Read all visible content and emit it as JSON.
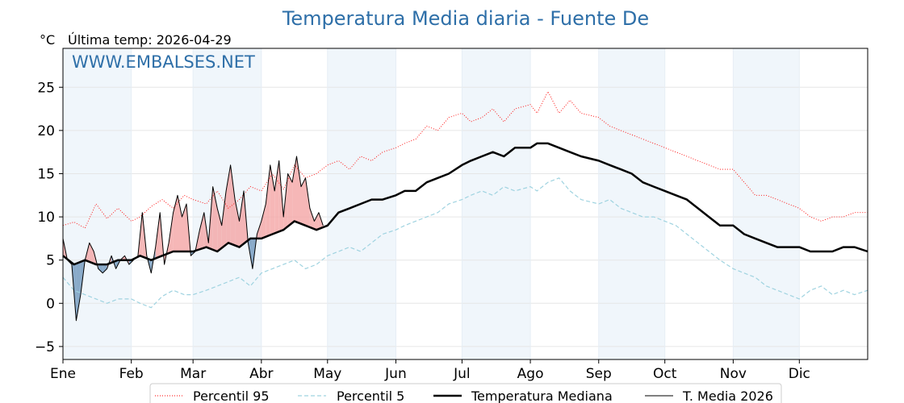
{
  "chart_data": {
    "type": "line",
    "title": "Temperatura Media diaria - Fuente De",
    "unit_label": "°C",
    "last_temp": "Última temp: 2026-04-29",
    "watermark": "WWW.EMBALSES.NET",
    "ylim": [
      -6.5,
      29.5
    ],
    "yticks": [
      -5,
      0,
      5,
      10,
      15,
      20,
      25
    ],
    "ytick_labels": [
      "−5",
      "0",
      "5",
      "10",
      "15",
      "20",
      "25"
    ],
    "xlim": [
      0,
      365
    ],
    "months": [
      {
        "label": "Ene",
        "day": 0
      },
      {
        "label": "Feb",
        "day": 31
      },
      {
        "label": "Mar",
        "day": 59
      },
      {
        "label": "Abr",
        "day": 90
      },
      {
        "label": "May",
        "day": 120
      },
      {
        "label": "Jun",
        "day": 151
      },
      {
        "label": "Jul",
        "day": 181
      },
      {
        "label": "Ago",
        "day": 212
      },
      {
        "label": "Sep",
        "day": 243
      },
      {
        "label": "Oct",
        "day": 273
      },
      {
        "label": "Nov",
        "day": 304
      },
      {
        "label": "Dic",
        "day": 334
      }
    ],
    "grid": true,
    "legend_position": "bottom",
    "series": [
      {
        "name": "Percentil 95",
        "color": "#ff0000",
        "style": "dotted",
        "x": [
          0,
          5,
          10,
          15,
          20,
          25,
          31,
          35,
          40,
          45,
          50,
          55,
          59,
          65,
          70,
          75,
          80,
          85,
          90,
          95,
          100,
          105,
          110,
          115,
          120,
          125,
          130,
          135,
          140,
          145,
          151,
          155,
          160,
          165,
          170,
          175,
          181,
          185,
          190,
          195,
          200,
          205,
          212,
          215,
          220,
          225,
          230,
          235,
          243,
          248,
          253,
          258,
          263,
          268,
          273,
          278,
          283,
          288,
          293,
          298,
          304,
          309,
          314,
          319,
          324,
          329,
          334,
          339,
          344,
          349,
          354,
          359,
          365
        ],
        "values": [
          9.0,
          9.4,
          8.7,
          11.5,
          9.8,
          11.0,
          9.5,
          10.0,
          11.2,
          12.0,
          11.0,
          12.5,
          12.0,
          11.5,
          13.0,
          11.0,
          12.0,
          13.5,
          13.0,
          15.0,
          13.2,
          16.0,
          14.5,
          15.0,
          16.0,
          16.5,
          15.5,
          17.0,
          16.5,
          17.5,
          18.0,
          18.5,
          19.0,
          20.5,
          20.0,
          21.5,
          22.0,
          21.0,
          21.5,
          22.5,
          21.0,
          22.5,
          23.0,
          22.0,
          24.5,
          22.0,
          23.5,
          22.0,
          21.5,
          20.5,
          20.0,
          19.5,
          19.0,
          18.5,
          18.0,
          17.5,
          17.0,
          16.5,
          16.0,
          15.5,
          15.5,
          14.0,
          12.5,
          12.5,
          12.0,
          11.5,
          11.0,
          10.0,
          9.5,
          10.0,
          10.0,
          10.5,
          10.5
        ]
      },
      {
        "name": "Percentil 5",
        "color": "#9fd3e0",
        "style": "dashed",
        "x": [
          0,
          5,
          10,
          15,
          20,
          25,
          31,
          35,
          40,
          45,
          50,
          55,
          59,
          65,
          70,
          75,
          80,
          85,
          90,
          95,
          100,
          105,
          110,
          115,
          120,
          125,
          130,
          135,
          140,
          145,
          151,
          155,
          160,
          165,
          170,
          175,
          181,
          185,
          190,
          195,
          200,
          205,
          212,
          215,
          220,
          225,
          230,
          235,
          243,
          248,
          253,
          258,
          263,
          268,
          273,
          278,
          283,
          288,
          293,
          298,
          304,
          309,
          314,
          319,
          324,
          329,
          334,
          339,
          344,
          349,
          354,
          359,
          365
        ],
        "values": [
          3.0,
          1.5,
          1.0,
          0.5,
          0.0,
          0.5,
          0.5,
          0.0,
          -0.5,
          0.8,
          1.5,
          1.0,
          1.0,
          1.5,
          2.0,
          2.5,
          3.0,
          2.0,
          3.5,
          4.0,
          4.5,
          5.0,
          4.0,
          4.5,
          5.5,
          6.0,
          6.5,
          6.0,
          7.0,
          8.0,
          8.5,
          9.0,
          9.5,
          10.0,
          10.5,
          11.5,
          12.0,
          12.5,
          13.0,
          12.5,
          13.5,
          13.0,
          13.5,
          13.0,
          14.0,
          14.5,
          13.0,
          12.0,
          11.5,
          12.0,
          11.0,
          10.5,
          10.0,
          10.0,
          9.5,
          9.0,
          8.0,
          7.0,
          6.0,
          5.0,
          4.0,
          3.5,
          3.0,
          2.0,
          1.5,
          1.0,
          0.5,
          1.5,
          2.0,
          1.0,
          1.5,
          1.0,
          1.5
        ]
      },
      {
        "name": "Temperatura Mediana",
        "color": "#000000",
        "style": "solid-bold",
        "x": [
          0,
          5,
          10,
          15,
          20,
          25,
          31,
          35,
          40,
          45,
          50,
          55,
          59,
          65,
          70,
          75,
          80,
          85,
          90,
          95,
          100,
          105,
          110,
          115,
          120,
          125,
          130,
          135,
          140,
          145,
          151,
          155,
          160,
          165,
          170,
          175,
          181,
          185,
          190,
          195,
          200,
          205,
          212,
          215,
          220,
          225,
          230,
          235,
          243,
          248,
          253,
          258,
          263,
          268,
          273,
          278,
          283,
          288,
          293,
          298,
          304,
          309,
          314,
          319,
          324,
          329,
          334,
          339,
          344,
          349,
          354,
          359,
          365
        ],
        "values": [
          5.5,
          4.5,
          5.0,
          4.5,
          4.5,
          5.0,
          5.0,
          5.5,
          5.0,
          5.5,
          6.0,
          6.0,
          6.0,
          6.5,
          6.0,
          7.0,
          6.5,
          7.5,
          7.5,
          8.0,
          8.5,
          9.5,
          9.0,
          8.5,
          9.0,
          10.5,
          11.0,
          11.5,
          12.0,
          12.0,
          12.5,
          13.0,
          13.0,
          14.0,
          14.5,
          15.0,
          16.0,
          16.5,
          17.0,
          17.5,
          17.0,
          18.0,
          18.0,
          18.5,
          18.5,
          18.0,
          17.5,
          17.0,
          16.5,
          16.0,
          15.5,
          15.0,
          14.0,
          13.5,
          13.0,
          12.5,
          12.0,
          11.0,
          10.0,
          9.0,
          9.0,
          8.0,
          7.5,
          7.0,
          6.5,
          6.5,
          6.5,
          6.0,
          6.0,
          6.0,
          6.5,
          6.5,
          6.0
        ]
      },
      {
        "name": "T. Media 2026",
        "color": "#000000",
        "style": "solid-thin",
        "x": [
          0,
          2,
          4,
          6,
          8,
          10,
          12,
          14,
          16,
          18,
          20,
          22,
          24,
          26,
          28,
          30,
          32,
          34,
          36,
          38,
          40,
          42,
          44,
          46,
          48,
          50,
          52,
          54,
          56,
          58,
          60,
          62,
          64,
          66,
          68,
          70,
          72,
          74,
          76,
          78,
          80,
          82,
          84,
          86,
          88,
          90,
          92,
          94,
          96,
          98,
          100,
          102,
          104,
          106,
          108,
          110,
          112,
          114,
          116,
          118
        ],
        "values": [
          7.5,
          5.0,
          4.5,
          -2.0,
          1.0,
          5.0,
          7.0,
          6.0,
          4.0,
          3.5,
          4.0,
          5.5,
          4.0,
          5.0,
          5.5,
          4.5,
          5.0,
          5.5,
          10.5,
          5.5,
          3.5,
          6.5,
          10.5,
          4.5,
          7.0,
          10.5,
          12.5,
          10.0,
          11.5,
          5.5,
          6.0,
          8.5,
          10.5,
          7.0,
          13.5,
          11.0,
          9.0,
          13.0,
          16.0,
          12.0,
          9.5,
          13.0,
          7.0,
          4.0,
          8.0,
          9.5,
          11.5,
          16.0,
          13.0,
          16.5,
          10.0,
          15.0,
          14.0,
          17.0,
          13.5,
          14.5,
          11.0,
          9.5,
          10.5,
          9.0
        ]
      }
    ]
  }
}
